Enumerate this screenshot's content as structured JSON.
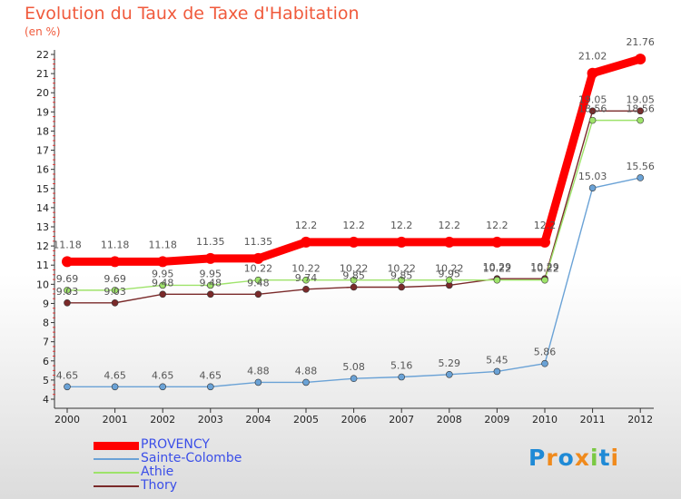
{
  "chart_data": {
    "type": "line",
    "title": "Evolution du Taux de Taxe d'Habitation",
    "unit": "(en %)",
    "categories": [
      "2000",
      "2001",
      "2002",
      "2003",
      "2004",
      "2005",
      "2006",
      "2007",
      "2008",
      "2009",
      "2010",
      "2011",
      "2012"
    ],
    "ylim": [
      4,
      22
    ],
    "yticks": [
      4,
      5,
      6,
      7,
      8,
      9,
      10,
      11,
      12,
      13,
      14,
      15,
      16,
      17,
      18,
      19,
      20,
      21,
      22
    ],
    "grid": false,
    "legend_position": "bottom-left",
    "series": [
      {
        "name": "PROVENCY",
        "color": "#ff0000",
        "values": [
          11.18,
          11.18,
          11.18,
          11.35,
          11.35,
          12.2,
          12.2,
          12.2,
          12.2,
          12.2,
          12.2,
          21.02,
          21.76
        ],
        "labels": [
          "11.18",
          "11.18",
          "11.18",
          "11.35",
          "11.35",
          "12.2",
          "12.2",
          "12.2",
          "12.2",
          "12.2",
          "12.2",
          "21.02",
          "21.76"
        ]
      },
      {
        "name": "Sainte-Colombe",
        "color": "#6aa2d6",
        "values": [
          4.65,
          4.65,
          4.65,
          4.65,
          4.88,
          4.88,
          5.08,
          5.16,
          5.29,
          5.45,
          5.86,
          15.03,
          15.56
        ],
        "labels": [
          "4.65",
          "4.65",
          "4.65",
          "4.65",
          "4.88",
          "4.88",
          "5.08",
          "5.16",
          "5.29",
          "5.45",
          "5.86",
          "15.03",
          "15.56"
        ]
      },
      {
        "name": "Athie",
        "color": "#9ee36a",
        "values": [
          9.69,
          9.69,
          9.95,
          9.95,
          10.22,
          10.22,
          10.22,
          10.22,
          10.22,
          10.22,
          10.22,
          18.56,
          18.56
        ],
        "labels": [
          "9.69",
          "9.69",
          "9.95",
          "9.95",
          "10.22",
          "10.22",
          "10.22",
          "10.22",
          "10.22",
          "10.22",
          "10.22",
          "18.56",
          "18.56"
        ]
      },
      {
        "name": "Thory",
        "color": "#7a2a2a",
        "values": [
          9.03,
          9.03,
          9.48,
          9.48,
          9.48,
          9.74,
          9.85,
          9.85,
          9.95,
          10.29,
          10.29,
          19.05,
          19.05
        ],
        "labels": [
          "9.03",
          "9.03",
          "9.48",
          "9.48",
          "9.48",
          "9.74",
          "9.85",
          "9.85",
          "9.95",
          "10.29",
          "10.29",
          "19.05",
          "19.05"
        ]
      }
    ]
  },
  "logo": {
    "letters": [
      "P",
      "r",
      "o",
      "x",
      "i",
      "t",
      "i"
    ]
  },
  "colors": {
    "title": "#f05a3c",
    "legend_text": "#3a4ee8",
    "logo": [
      "#1f8ad6",
      "#f08a1c",
      "#1f8ad6",
      "#f08a1c",
      "#7ac943",
      "#1f8ad6",
      "#f08a1c"
    ]
  }
}
